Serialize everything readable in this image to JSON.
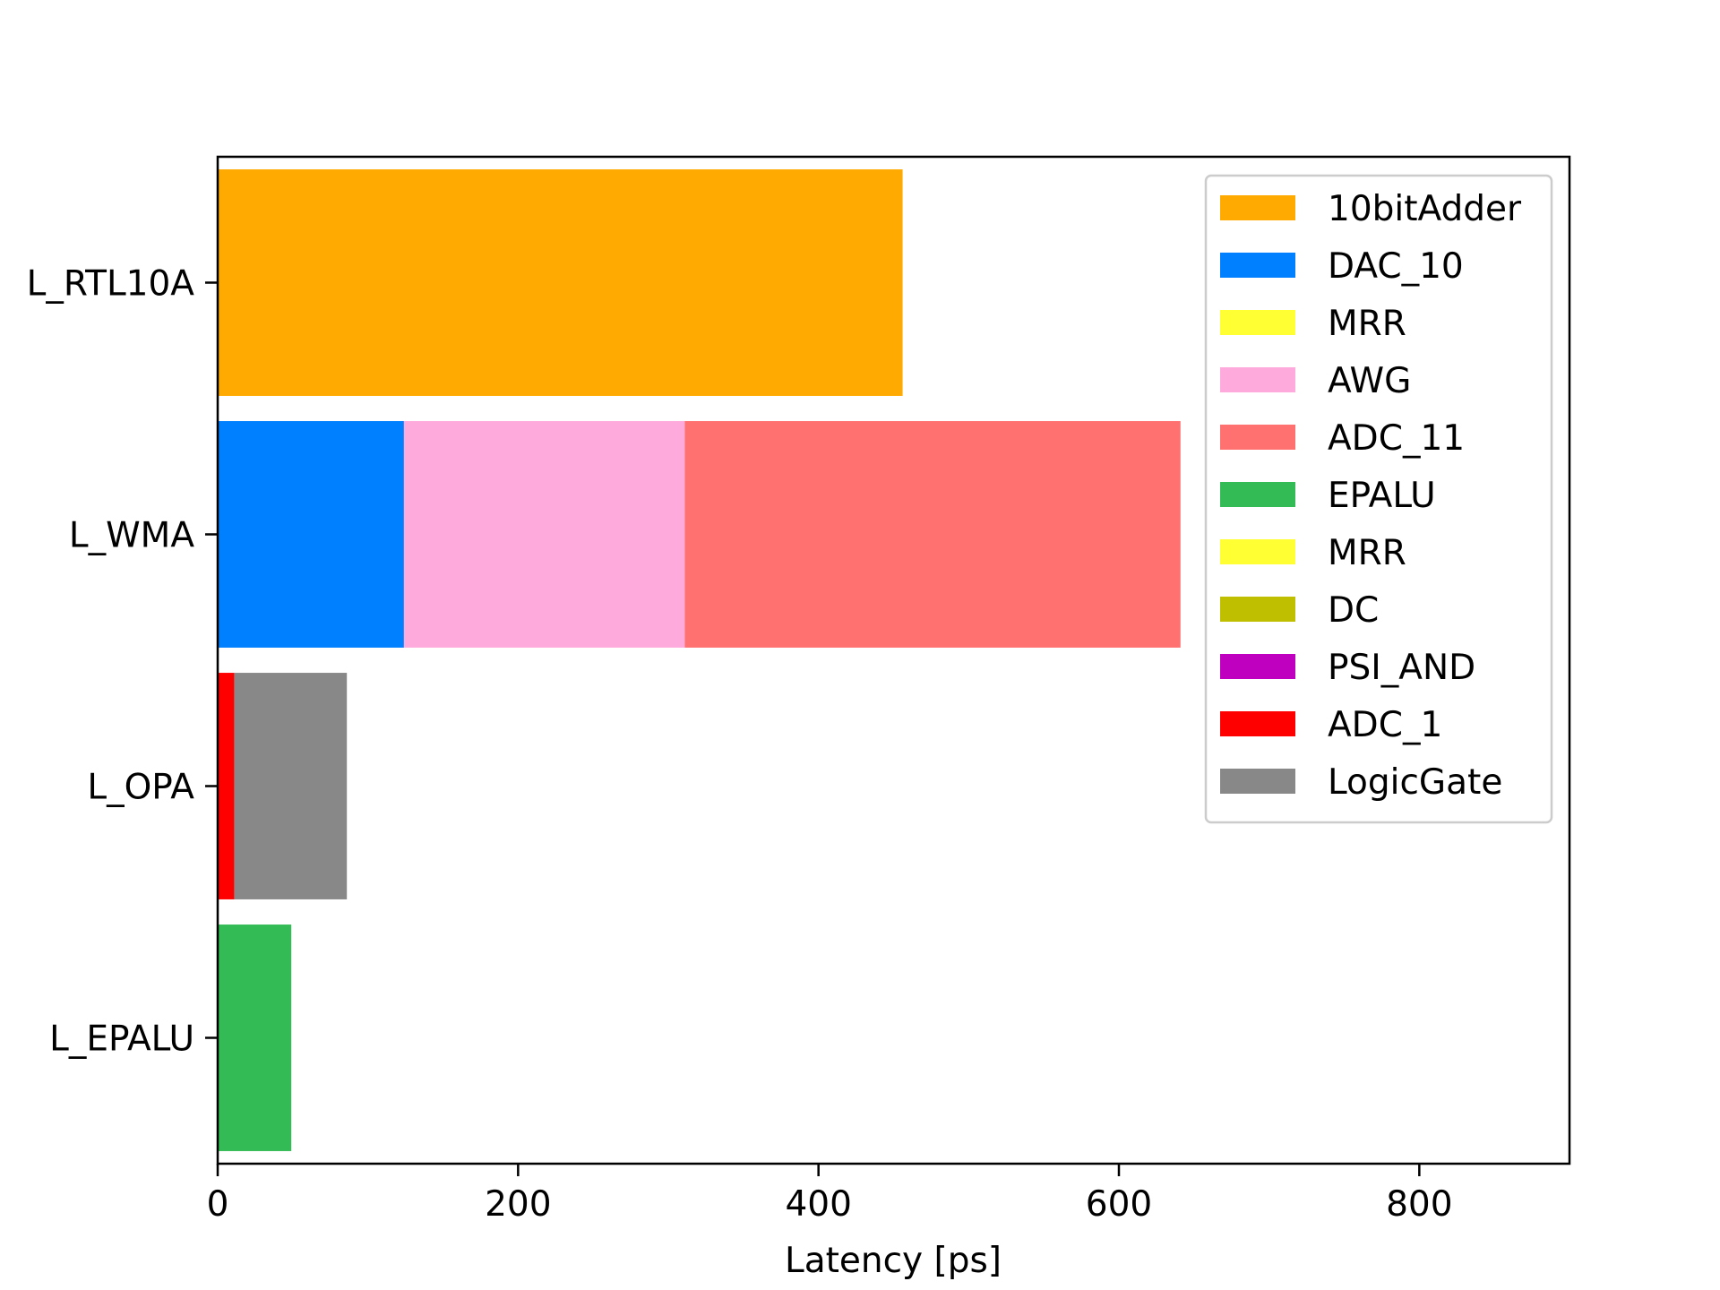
{
  "chart_data": {
    "type": "bar",
    "orientation": "horizontal",
    "stacked": true,
    "title": "",
    "xlabel": "Latency [ps]",
    "ylabel": "",
    "xlim": [
      0,
      900
    ],
    "xticks": [
      0,
      200,
      400,
      600,
      800
    ],
    "grid": false,
    "legend_position": "top-right",
    "categories": [
      "L_RTL10A",
      "L_WMA",
      "L_OPA",
      "L_EPALU"
    ],
    "series": [
      {
        "name": "10bitAdder",
        "color": "#FFAA00",
        "values": [
          456,
          0,
          0,
          0
        ]
      },
      {
        "name": "DAC_10",
        "color": "#0080FF",
        "values": [
          0,
          124,
          0,
          0
        ]
      },
      {
        "name": "MRR",
        "color": "#FFFF33",
        "values": [
          0,
          0,
          0,
          0
        ]
      },
      {
        "name": "AWG",
        "color": "#FFAADD",
        "values": [
          0,
          187,
          0,
          0
        ]
      },
      {
        "name": "ADC_11",
        "color": "#FF7070",
        "values": [
          0,
          330,
          0,
          0
        ]
      },
      {
        "name": "EPALU",
        "color": "#33BB55",
        "values": [
          0,
          0,
          0,
          49
        ]
      },
      {
        "name": "MRR",
        "color": "#FFFF33",
        "values": [
          0,
          0,
          0,
          0
        ]
      },
      {
        "name": "DC",
        "color": "#BFBF00",
        "values": [
          0,
          0,
          0,
          0
        ]
      },
      {
        "name": "PSI_AND",
        "color": "#BF00BF",
        "values": [
          0,
          0,
          0,
          0
        ]
      },
      {
        "name": "ADC_1",
        "color": "#FF0000",
        "values": [
          0,
          0,
          11,
          0
        ]
      },
      {
        "name": "LogicGate",
        "color": "#888888",
        "values": [
          0,
          0,
          75,
          0
        ]
      }
    ]
  }
}
